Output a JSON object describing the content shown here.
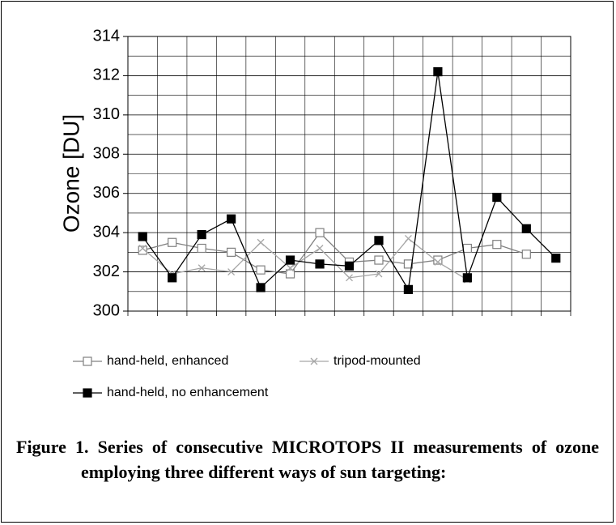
{
  "chart_data": {
    "type": "line",
    "ylabel": "Ozone [DU]",
    "categories": [
      null,
      null,
      null,
      null,
      null,
      null,
      null,
      null,
      null,
      null,
      null,
      null,
      null,
      null,
      null
    ],
    "series": [
      {
        "name": "hand-held, enhanced",
        "color": "#808080",
        "marker": "open-square",
        "values": [
          303.1,
          303.5,
          303.2,
          303.0,
          302.1,
          301.9,
          304.0,
          302.5,
          302.6,
          302.4,
          302.6,
          303.2,
          303.4,
          302.9,
          null
        ]
      },
      {
        "name": "tripod-mounted",
        "color": "#a6a6a6",
        "marker": "x",
        "values": [
          303.2,
          301.9,
          302.2,
          302.0,
          303.5,
          302.2,
          303.2,
          301.7,
          301.9,
          303.7,
          302.5,
          301.6,
          null,
          null,
          null
        ]
      },
      {
        "name": "hand-held, no enhancement",
        "color": "#000000",
        "marker": "filled-square",
        "values": [
          303.8,
          301.7,
          303.9,
          304.7,
          301.2,
          302.6,
          302.4,
          302.3,
          303.6,
          301.1,
          312.2,
          301.7,
          305.8,
          304.2,
          302.7
        ]
      }
    ],
    "ylim": [
      300,
      314
    ],
    "yticks": [
      300,
      302,
      304,
      306,
      308,
      310,
      312,
      314
    ],
    "minor_yticks": [
      301,
      303,
      305,
      307,
      309,
      311,
      313
    ],
    "grid": true,
    "caption": "Figure 1. Series of consecutive MICROTOPS II measurements of ozone employing three different ways of sun targeting:"
  }
}
